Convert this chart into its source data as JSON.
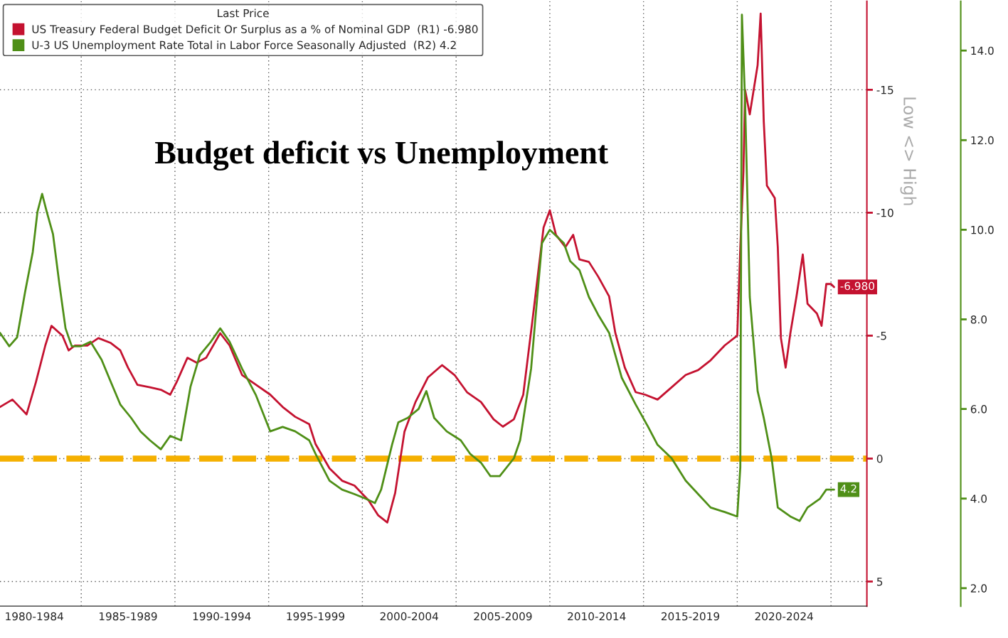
{
  "chart_data": {
    "type": "line",
    "title": "Budget deficit vs Unemployment",
    "legend_title": "Last Price",
    "annotations": [
      "Low <> High"
    ],
    "legend": "top left",
    "grid": true,
    "xlim": [
      "1980-09",
      "2026-12"
    ],
    "xticks": [
      {
        "value": "1982-07",
        "label": "1980-1984"
      },
      {
        "value": "1985-01",
        "label": null
      },
      {
        "value": "1987-07",
        "label": "1985-1989"
      },
      {
        "value": "1990-01",
        "label": null
      },
      {
        "value": "1992-07",
        "label": "1990-1994"
      },
      {
        "value": "1995-01",
        "label": null
      },
      {
        "value": "1997-07",
        "label": "1995-1999"
      },
      {
        "value": "2000-01",
        "label": null
      },
      {
        "value": "2002-07",
        "label": "2000-2004"
      },
      {
        "value": "2005-01",
        "label": null
      },
      {
        "value": "2007-07",
        "label": "2005-2009"
      },
      {
        "value": "2010-01",
        "label": null
      },
      {
        "value": "2012-07",
        "label": "2010-2014"
      },
      {
        "value": "2015-01",
        "label": null
      },
      {
        "value": "2017-07",
        "label": "2015-2019"
      },
      {
        "value": "2020-01",
        "label": null
      },
      {
        "value": "2022-07",
        "label": "2020-2024"
      },
      {
        "value": "2025-01",
        "label": null
      }
    ],
    "ylim": [
      6.0,
      -18.6
    ],
    "yticks": [
      -15,
      -10,
      -5,
      0,
      5
    ],
    "y2lim": [
      1.6,
      15.1
    ],
    "y2ticks": [
      {
        "value": 2,
        "label": "2.0"
      },
      {
        "value": 4,
        "label": "4.0"
      },
      {
        "value": 6,
        "label": "6.0"
      },
      {
        "value": 8,
        "label": "8.0"
      },
      {
        "value": 10,
        "label": "10.0"
      },
      {
        "value": 12,
        "label": "12.0"
      },
      {
        "value": 14,
        "label": "14.0"
      }
    ],
    "ref_lines": [
      {
        "axis": "y",
        "value": 0,
        "label": null,
        "color": "#f5b000",
        "line_style": "dashed"
      }
    ],
    "series": [
      {
        "name": "US Treasury Federal Budget Deficit Or Surplus as a % of Nominal GDP  (R1) -6.980",
        "color": "#c41230",
        "axis": "y",
        "x": [
          "1980-09",
          "1981-05",
          "1982-02",
          "1982-08",
          "1983-02",
          "1983-06",
          "1984-01",
          "1984-05",
          "1984-09",
          "1985-05",
          "1985-12",
          "1986-08",
          "1987-02",
          "1987-07",
          "1988-01",
          "1988-09",
          "1989-04",
          "1989-10",
          "1990-02",
          "1990-09",
          "1991-03",
          "1991-09",
          "1992-06",
          "1992-12",
          "1993-08",
          "1994-05",
          "1995-02",
          "1995-10",
          "1996-06",
          "1997-03",
          "1997-07",
          "1998-04",
          "1998-12",
          "1999-08",
          "2000-05",
          "2000-11",
          "2001-05",
          "2001-10",
          "2002-04",
          "2002-11",
          "2003-07",
          "2004-04",
          "2004-12",
          "2005-08",
          "2006-05",
          "2007-01",
          "2007-07",
          "2008-02",
          "2008-08",
          "2009-02",
          "2009-09",
          "2010-01",
          "2010-05",
          "2010-11",
          "2011-04",
          "2011-08",
          "2012-02",
          "2012-08",
          "2013-03",
          "2013-07",
          "2014-01",
          "2014-08",
          "2015-02",
          "2015-10",
          "2016-07",
          "2017-04",
          "2017-12",
          "2018-08",
          "2019-05",
          "2020-01",
          "2020-03",
          "2020-05",
          "2020-06",
          "2020-09",
          "2021-02",
          "2021-04",
          "2021-06",
          "2021-08",
          "2022-01",
          "2022-03",
          "2022-05",
          "2022-08",
          "2022-11",
          "2023-03",
          "2023-07",
          "2023-10",
          "2024-04",
          "2024-07",
          "2024-10",
          "2025-01",
          "2025-03"
        ],
        "values": [
          -2.1,
          -2.4,
          -1.8,
          -3.1,
          -4.6,
          -5.4,
          -5.0,
          -4.4,
          -4.6,
          -4.6,
          -4.9,
          -4.7,
          -4.4,
          -3.7,
          -3.0,
          -2.9,
          -2.8,
          -2.6,
          -3.1,
          -4.1,
          -3.9,
          -4.1,
          -5.1,
          -4.6,
          -3.4,
          -3.0,
          -2.6,
          -2.1,
          -1.7,
          -1.4,
          -0.6,
          0.4,
          0.9,
          1.1,
          1.7,
          2.3,
          2.6,
          1.4,
          -1.1,
          -2.3,
          -3.3,
          -3.8,
          -3.4,
          -2.7,
          -2.3,
          -1.6,
          -1.3,
          -1.6,
          -2.6,
          -5.7,
          -9.4,
          -10.1,
          -9.1,
          -8.6,
          -9.1,
          -8.1,
          -8.0,
          -7.4,
          -6.6,
          -5.1,
          -3.7,
          -2.7,
          -2.6,
          -2.4,
          -2.9,
          -3.4,
          -3.6,
          -4.0,
          -4.6,
          -5.0,
          -8.6,
          -11.7,
          -15.0,
          -14.0,
          -16.0,
          -18.1,
          -13.7,
          -11.1,
          -10.6,
          -8.6,
          -4.9,
          -3.7,
          -5.1,
          -6.6,
          -8.3,
          -6.3,
          -5.9,
          -5.4,
          -7.1,
          -7.1,
          -6.98
        ],
        "value_labels": [
          null,
          null,
          null,
          null,
          null,
          null,
          null,
          null,
          null,
          null,
          null,
          null,
          null,
          null,
          null,
          null,
          null,
          null,
          null,
          null,
          null,
          null,
          null,
          null,
          null,
          null,
          null,
          null,
          null,
          null,
          null,
          null,
          null,
          null,
          null,
          null,
          null,
          null,
          null,
          null,
          null,
          null,
          null,
          null,
          null,
          null,
          null,
          null,
          null,
          null,
          null,
          null,
          null,
          null,
          null,
          null,
          null,
          null,
          null,
          null,
          null,
          null,
          null,
          null,
          null,
          null,
          null,
          null,
          null,
          null,
          null,
          null,
          null,
          null,
          null,
          null,
          null,
          null,
          null,
          null,
          null,
          null,
          null,
          null,
          null,
          null,
          null,
          null,
          null,
          null,
          "-6.980"
        ]
      },
      {
        "name": "U-3 US Unemployment Rate Total in Labor Force Seasonally Adjusted  (R2) 4.2",
        "color": "#4f8f17",
        "axis": "y2",
        "x": [
          "1980-09",
          "1981-03",
          "1981-08",
          "1982-01",
          "1982-06",
          "1982-09",
          "1982-12",
          "1983-03",
          "1983-07",
          "1983-11",
          "1984-03",
          "1984-07",
          "1985-01",
          "1985-07",
          "1986-02",
          "1986-08",
          "1987-02",
          "1987-09",
          "1988-03",
          "1988-09",
          "1989-04",
          "1989-10",
          "1990-05",
          "1990-11",
          "1991-05",
          "1991-12",
          "1992-06",
          "1992-12",
          "1993-08",
          "1994-05",
          "1995-02",
          "1995-10",
          "1996-06",
          "1997-03",
          "1997-07",
          "1998-04",
          "1998-12",
          "1999-08",
          "2000-03",
          "2000-09",
          "2001-01",
          "2001-08",
          "2001-12",
          "2002-06",
          "2003-01",
          "2003-06",
          "2003-11",
          "2004-07",
          "2005-04",
          "2005-10",
          "2006-05",
          "2006-11",
          "2007-05",
          "2008-02",
          "2008-06",
          "2009-01",
          "2009-05",
          "2009-08",
          "2010-01",
          "2010-10",
          "2011-02",
          "2011-08",
          "2012-02",
          "2012-08",
          "2013-03",
          "2013-11",
          "2014-08",
          "2015-04",
          "2015-10",
          "2016-07",
          "2017-04",
          "2017-12",
          "2018-08",
          "2019-05",
          "2020-01",
          "2020-03",
          "2020-04",
          "2020-06",
          "2020-09",
          "2021-02",
          "2021-06",
          "2021-11",
          "2022-03",
          "2022-11",
          "2023-05",
          "2023-10",
          "2024-06",
          "2024-10",
          "2025-03"
        ],
        "values": [
          7.7,
          7.4,
          7.6,
          8.6,
          9.5,
          10.4,
          10.8,
          10.4,
          9.9,
          8.8,
          7.8,
          7.4,
          7.4,
          7.5,
          7.1,
          6.6,
          6.1,
          5.8,
          5.5,
          5.3,
          5.1,
          5.4,
          5.3,
          6.5,
          7.2,
          7.5,
          7.8,
          7.5,
          6.9,
          6.3,
          5.5,
          5.6,
          5.5,
          5.3,
          5.0,
          4.4,
          4.2,
          4.1,
          4.0,
          3.9,
          4.2,
          5.2,
          5.7,
          5.8,
          6.0,
          6.4,
          5.8,
          5.5,
          5.3,
          5.0,
          4.8,
          4.5,
          4.5,
          4.9,
          5.3,
          6.9,
          8.5,
          9.7,
          10.0,
          9.7,
          9.3,
          9.1,
          8.5,
          8.1,
          7.7,
          6.7,
          6.1,
          5.6,
          5.2,
          4.9,
          4.4,
          4.1,
          3.8,
          3.7,
          3.6,
          4.7,
          14.8,
          12.9,
          8.5,
          6.4,
          5.8,
          4.9,
          3.8,
          3.6,
          3.5,
          3.8,
          4.0,
          4.2,
          4.2
        ],
        "value_labels": [
          null,
          null,
          null,
          null,
          null,
          null,
          null,
          null,
          null,
          null,
          null,
          null,
          null,
          null,
          null,
          null,
          null,
          null,
          null,
          null,
          null,
          null,
          null,
          null,
          null,
          null,
          null,
          null,
          null,
          null,
          null,
          null,
          null,
          null,
          null,
          null,
          null,
          null,
          null,
          null,
          null,
          null,
          null,
          null,
          null,
          null,
          null,
          null,
          null,
          null,
          null,
          null,
          null,
          null,
          null,
          null,
          null,
          null,
          null,
          null,
          null,
          null,
          null,
          null,
          null,
          null,
          null,
          null,
          null,
          null,
          null,
          null,
          null,
          null,
          null,
          null,
          null,
          null,
          null,
          null,
          null,
          null,
          null,
          null,
          null,
          null,
          null,
          null,
          "4.2"
        ]
      }
    ]
  }
}
